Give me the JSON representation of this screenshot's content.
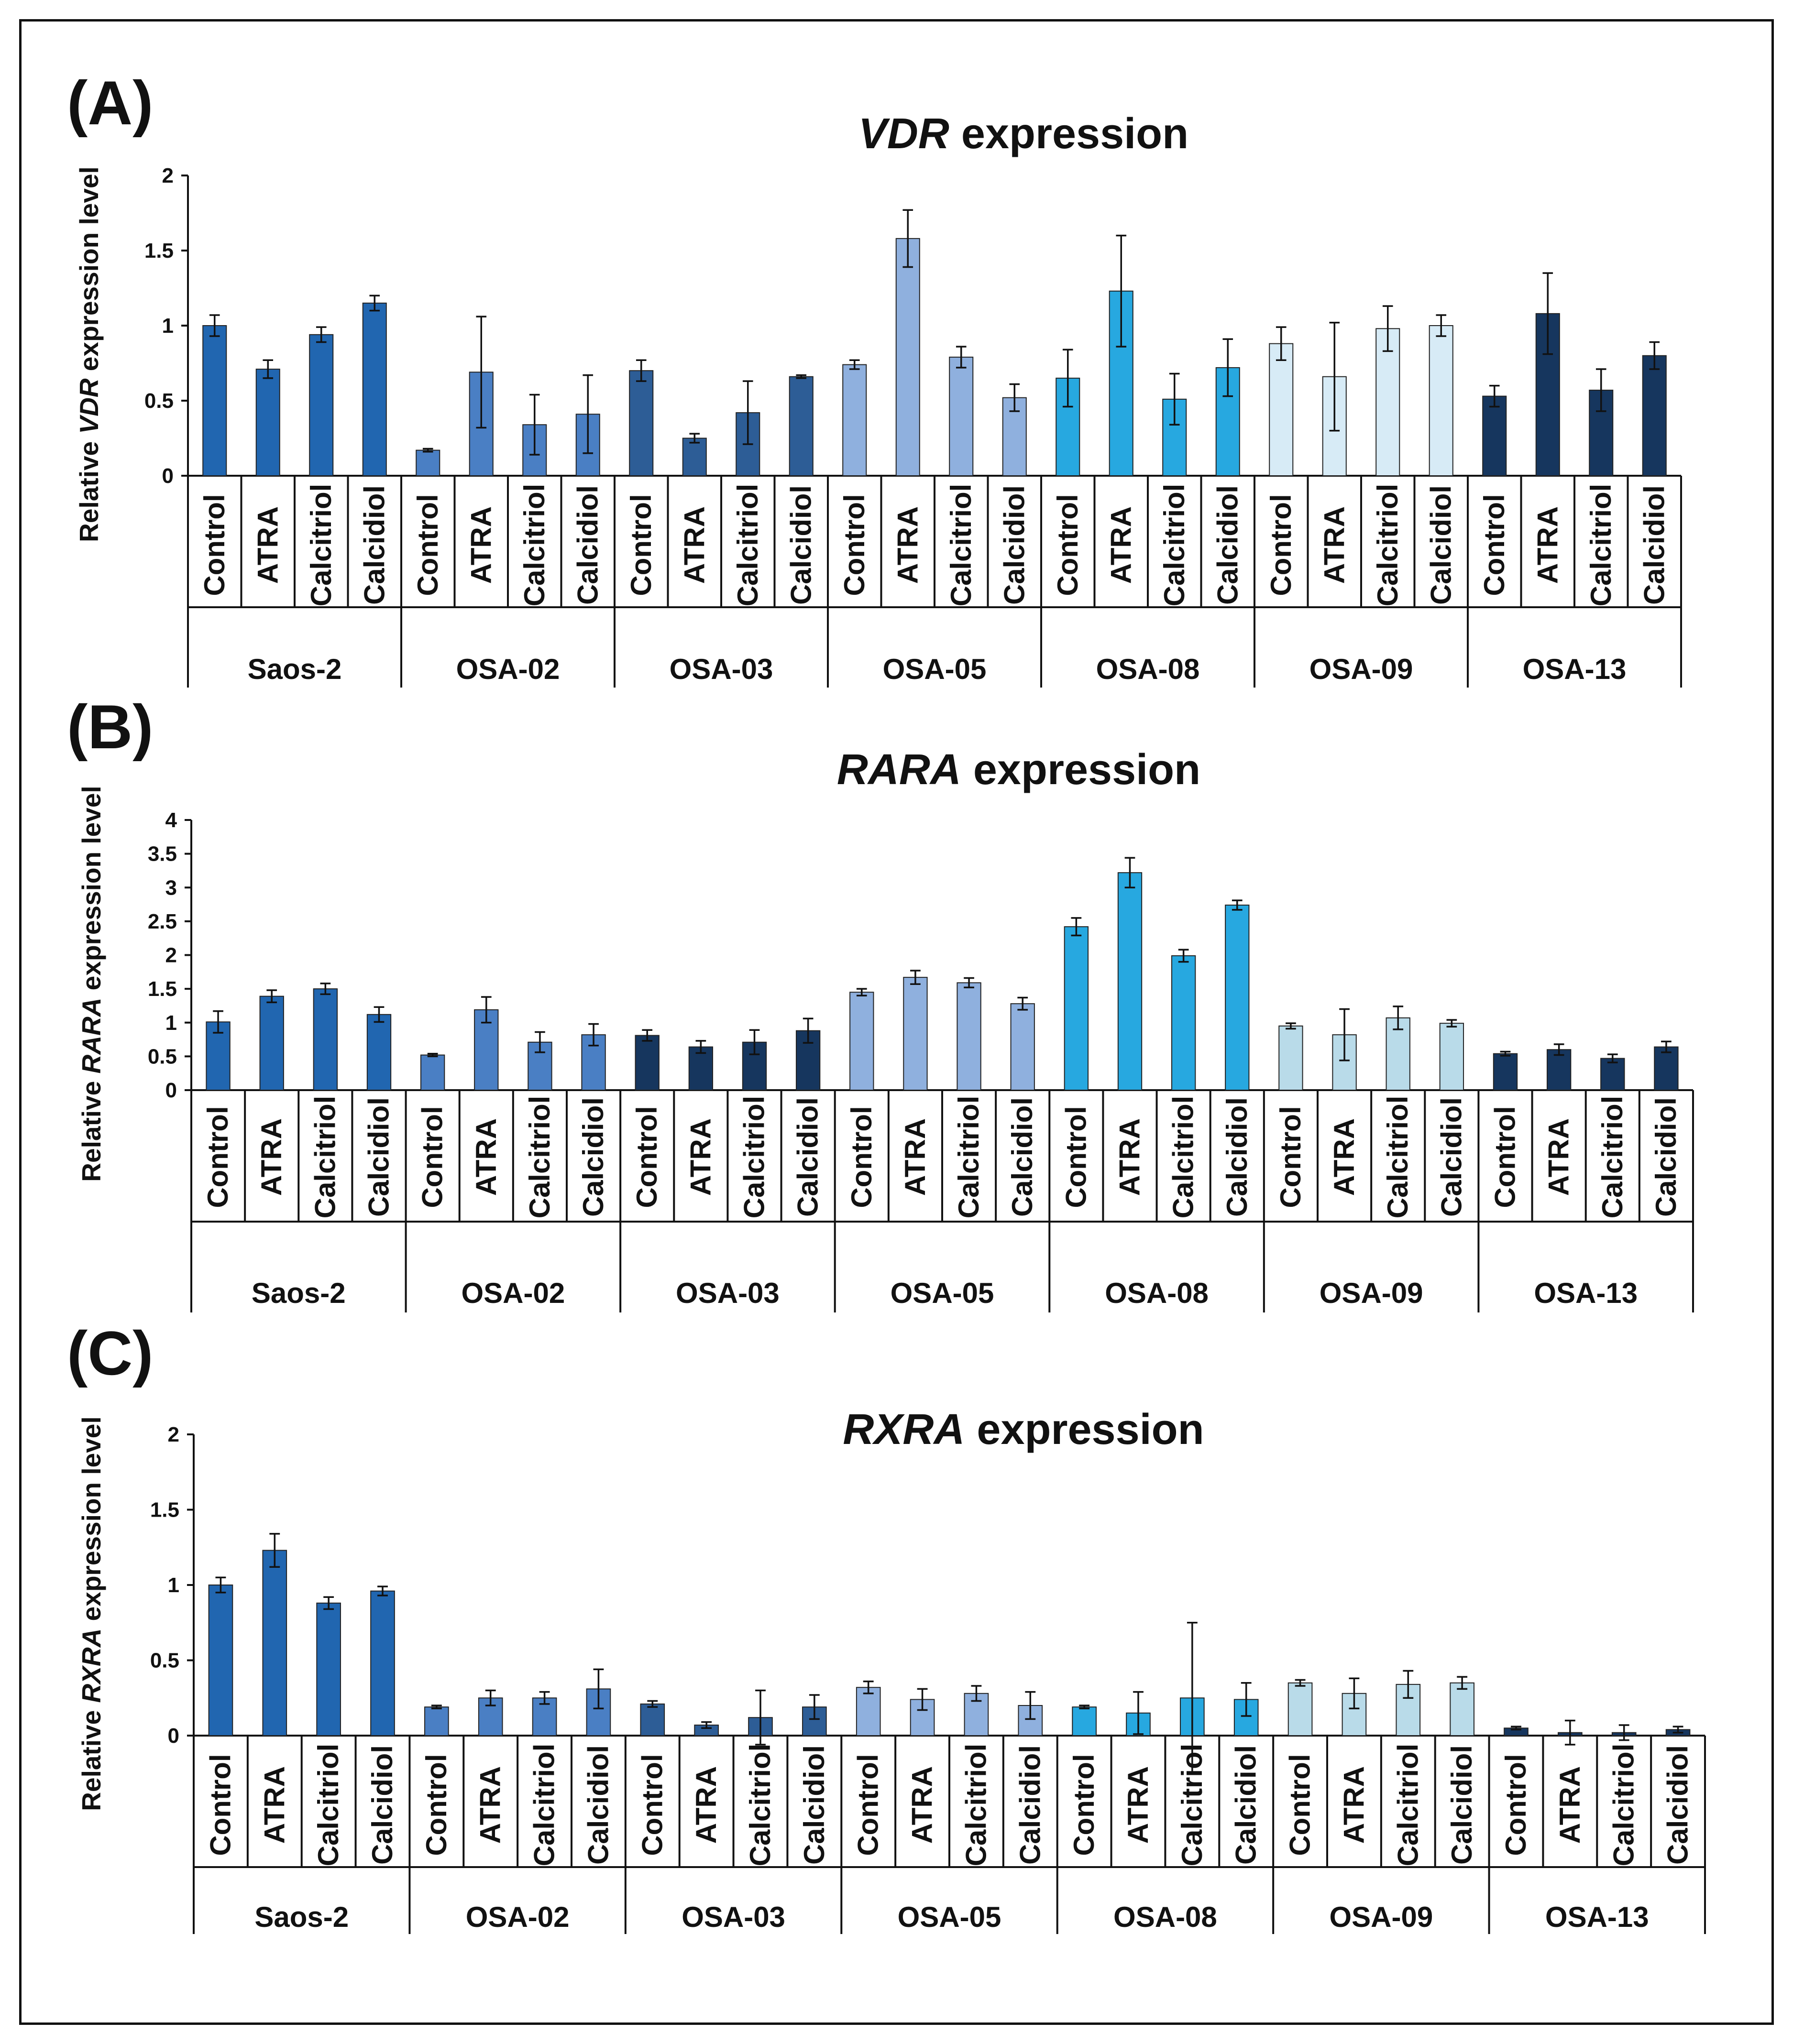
{
  "panels": [
    {
      "letter": "(A)",
      "title_gene": "VDR",
      "title_rest": " expression",
      "ylabel_pre": "Relative ",
      "ylabel_gene": "VDR",
      "ylabel_post": " expression level"
    },
    {
      "letter": "(B)",
      "title_gene": "RARA",
      "title_rest": " expression",
      "ylabel_pre": "Relative ",
      "ylabel_gene": "RARA",
      "ylabel_post": " expression level"
    },
    {
      "letter": "(C)",
      "title_gene": "RXRA",
      "title_rest": " expression",
      "ylabel_pre": "Relative ",
      "ylabel_gene": "RXRA",
      "ylabel_post": " expression level"
    }
  ],
  "chart_data": [
    {
      "type": "bar",
      "title": "VDR expression",
      "ylabel": "Relative VDR expression level",
      "ylim": [
        0,
        2
      ],
      "yticks": [
        "0",
        "0.5",
        "1",
        "1.5",
        "2"
      ],
      "tick_values": [
        0,
        0.5,
        1,
        1.5,
        2
      ],
      "treatments": [
        "Control",
        "ATRA",
        "Calcitriol",
        "Calcidiol"
      ],
      "groups": [
        "Saos-2",
        "OSA-02",
        "OSA-03",
        "OSA-05",
        "OSA-08",
        "OSA-09",
        "OSA-13"
      ],
      "group_colors": [
        "#2166b0",
        "#4a7fc4",
        "#2d5d96",
        "#8fb0de",
        "#27a8e0",
        "#d7ebf6",
        "#16365e"
      ],
      "values": [
        [
          1.0,
          0.71,
          0.94,
          1.15
        ],
        [
          0.17,
          0.69,
          0.34,
          0.41
        ],
        [
          0.7,
          0.25,
          0.42,
          0.66
        ],
        [
          0.74,
          1.58,
          0.79,
          0.52
        ],
        [
          0.65,
          1.23,
          0.51,
          0.72
        ],
        [
          0.88,
          0.66,
          0.98,
          1.0
        ],
        [
          0.53,
          1.08,
          0.57,
          0.8
        ]
      ],
      "errors": [
        [
          0.07,
          0.06,
          0.05,
          0.05
        ],
        [
          0.01,
          0.37,
          0.2,
          0.26
        ],
        [
          0.07,
          0.03,
          0.21,
          0.01
        ],
        [
          0.03,
          0.19,
          0.07,
          0.09
        ],
        [
          0.19,
          0.37,
          0.17,
          0.19
        ],
        [
          0.11,
          0.36,
          0.15,
          0.07
        ],
        [
          0.07,
          0.27,
          0.14,
          0.09
        ]
      ]
    },
    {
      "type": "bar",
      "title": "RARA expression",
      "ylabel": "Relative RARA expression level",
      "ylim": [
        0,
        4
      ],
      "yticks": [
        "0",
        "0.5",
        "1",
        "1.5",
        "2",
        "2.5",
        "3",
        "3.5",
        "4"
      ],
      "tick_values": [
        0,
        0.5,
        1,
        1.5,
        2,
        2.5,
        3,
        3.5,
        4
      ],
      "treatments": [
        "Control",
        "ATRA",
        "Calcitriol",
        "Calcidiol"
      ],
      "groups": [
        "Saos-2",
        "OSA-02",
        "OSA-03",
        "OSA-05",
        "OSA-08",
        "OSA-09",
        "OSA-13"
      ],
      "group_colors": [
        "#2166b0",
        "#4a7fc4",
        "#16365e",
        "#8fb0de",
        "#27a8e0",
        "#b9dbe9",
        "#16365e"
      ],
      "values": [
        [
          1.01,
          1.39,
          1.5,
          1.12
        ],
        [
          0.52,
          1.19,
          0.71,
          0.82
        ],
        [
          0.81,
          0.64,
          0.71,
          0.88
        ],
        [
          1.45,
          1.67,
          1.59,
          1.28
        ],
        [
          2.42,
          3.22,
          1.99,
          2.74
        ],
        [
          0.95,
          0.82,
          1.07,
          0.99
        ],
        [
          0.54,
          0.6,
          0.47,
          0.64
        ]
      ],
      "errors": [
        [
          0.16,
          0.09,
          0.08,
          0.11
        ],
        [
          0.02,
          0.19,
          0.15,
          0.16
        ],
        [
          0.08,
          0.09,
          0.18,
          0.18
        ],
        [
          0.05,
          0.1,
          0.07,
          0.09
        ],
        [
          0.13,
          0.22,
          0.09,
          0.07
        ],
        [
          0.04,
          0.38,
          0.17,
          0.05
        ],
        [
          0.03,
          0.08,
          0.06,
          0.08
        ]
      ]
    },
    {
      "type": "bar",
      "title": "RXRA expression",
      "ylabel": "Relative RXRA expression level",
      "ylim": [
        0,
        2
      ],
      "yticks": [
        "0",
        "0.5",
        "1",
        "1.5",
        "2"
      ],
      "tick_values": [
        0,
        0.5,
        1,
        1.5,
        2
      ],
      "treatments": [
        "Control",
        "ATRA",
        "Calcitriol",
        "Calcidiol"
      ],
      "groups": [
        "Saos-2",
        "OSA-02",
        "OSA-03",
        "OSA-05",
        "OSA-08",
        "OSA-09",
        "OSA-13"
      ],
      "group_colors": [
        "#2166b0",
        "#4a7fc4",
        "#2d5d96",
        "#8fb0de",
        "#27a8e0",
        "#b9dbe9",
        "#16365e"
      ],
      "values": [
        [
          1.0,
          1.23,
          0.88,
          0.96
        ],
        [
          0.19,
          0.25,
          0.25,
          0.31
        ],
        [
          0.21,
          0.07,
          0.12,
          0.19
        ],
        [
          0.32,
          0.24,
          0.28,
          0.2
        ],
        [
          0.19,
          0.15,
          0.25,
          0.24
        ],
        [
          0.35,
          0.28,
          0.34,
          0.35
        ],
        [
          0.05,
          0.02,
          0.02,
          0.04
        ]
      ],
      "errors": [
        [
          0.05,
          0.11,
          0.04,
          0.03
        ],
        [
          0.01,
          0.05,
          0.04,
          0.13
        ],
        [
          0.02,
          0.02,
          0.18,
          0.08
        ],
        [
          0.04,
          0.07,
          0.05,
          0.09
        ],
        [
          0.01,
          0.14,
          0.5,
          0.11
        ],
        [
          0.02,
          0.1,
          0.09,
          0.04
        ],
        [
          0.01,
          0.08,
          0.05,
          0.02
        ]
      ]
    }
  ]
}
